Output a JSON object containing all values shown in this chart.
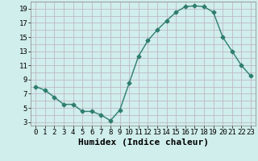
{
  "x": [
    0,
    1,
    2,
    3,
    4,
    5,
    6,
    7,
    8,
    9,
    10,
    11,
    12,
    13,
    14,
    15,
    16,
    17,
    18,
    19,
    20,
    21,
    22,
    23
  ],
  "y": [
    8.0,
    7.5,
    6.5,
    5.5,
    5.5,
    4.5,
    4.5,
    4.0,
    3.2,
    4.7,
    8.5,
    12.3,
    14.5,
    16.0,
    17.3,
    18.5,
    19.3,
    19.4,
    19.3,
    18.5,
    15.0,
    13.0,
    11.0,
    9.5
  ],
  "line_color": "#2e7d6e",
  "marker": "D",
  "marker_size": 2.5,
  "bg_color": "#d0eeeb",
  "grid_color": "#c0b8c8",
  "xlabel": "Humidex (Indice chaleur)",
  "xlim": [
    -0.5,
    23.5
  ],
  "ylim": [
    2.5,
    20.0
  ],
  "yticks": [
    3,
    5,
    7,
    9,
    11,
    13,
    15,
    17,
    19
  ],
  "xtick_labels": [
    "0",
    "1",
    "2",
    "3",
    "4",
    "5",
    "6",
    "7",
    "8",
    "9",
    "10",
    "11",
    "12",
    "13",
    "14",
    "15",
    "16",
    "17",
    "18",
    "19",
    "20",
    "21",
    "22",
    "23"
  ],
  "xlabel_fontsize": 8,
  "tick_fontsize": 6.5
}
